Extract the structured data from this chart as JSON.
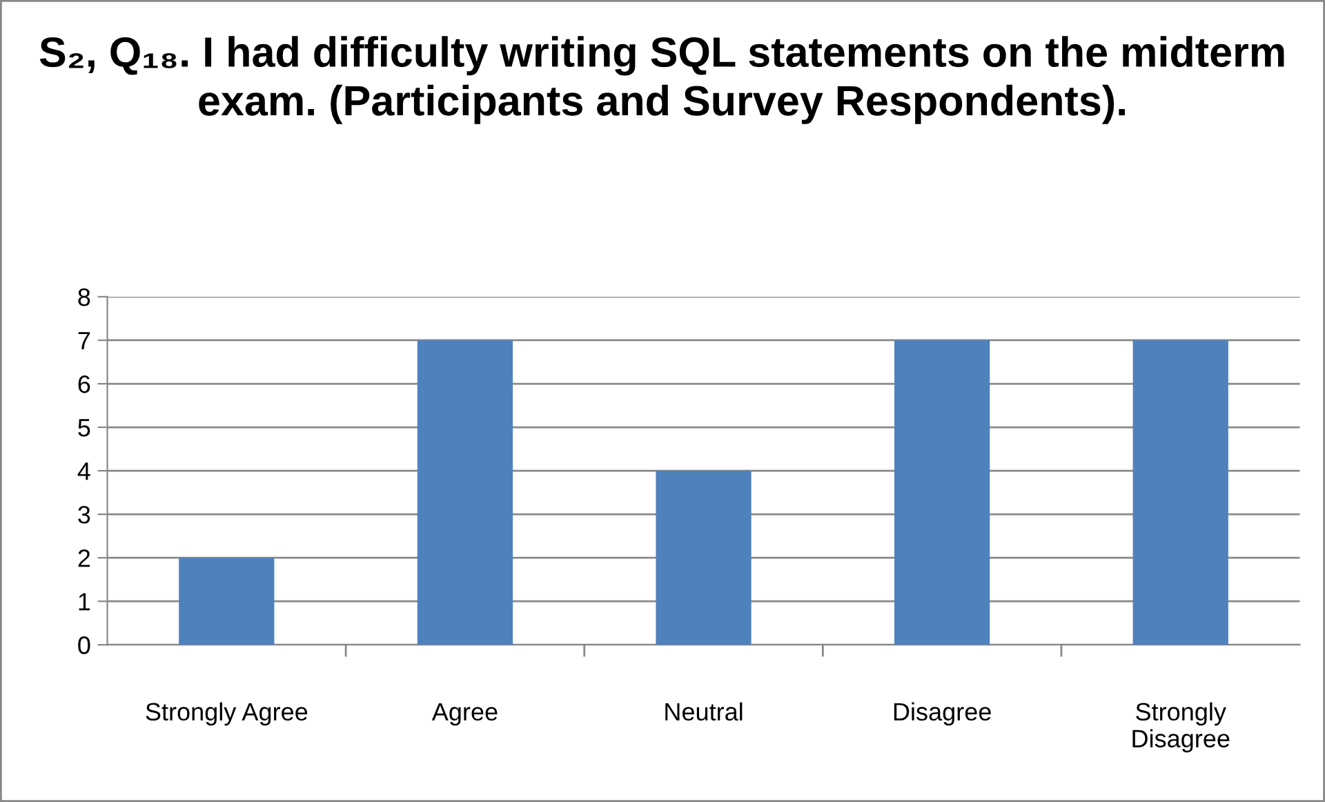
{
  "chart_data": {
    "type": "bar",
    "title": "S₂, Q₁₈. I had difficulty writing SQL statements on the midterm exam. (Participants and Survey Respondents).",
    "categories": [
      "Strongly Agree",
      "Agree",
      "Neutral",
      "Disagree",
      "Strongly Disagree"
    ],
    "values": [
      2,
      7,
      4,
      7,
      7
    ],
    "color": "#4f81bd",
    "ylim": [
      0,
      8
    ],
    "yticks": [
      0,
      1,
      2,
      3,
      4,
      5,
      6,
      7,
      8
    ],
    "grid": "y",
    "legend": false
  }
}
